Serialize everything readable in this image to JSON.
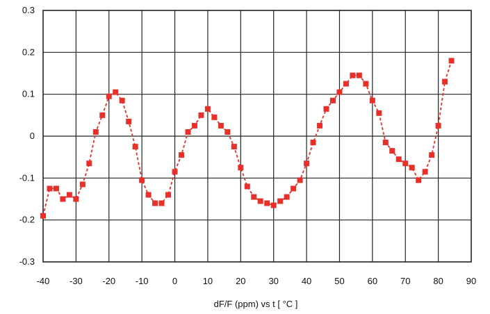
{
  "chart_data": {
    "type": "line",
    "title": "",
    "xlabel": "dF/F (ppm)  vs  t [ °C  ]",
    "ylabel": "",
    "xlim": [
      -40,
      90
    ],
    "ylim": [
      -0.3,
      0.3
    ],
    "x_ticks": [
      -40,
      -30,
      -20,
      -10,
      0,
      10,
      20,
      30,
      40,
      50,
      60,
      70,
      80,
      90
    ],
    "y_ticks": [
      -0.3,
      -0.2,
      -0.1,
      0,
      0.1,
      0.2,
      0.3
    ],
    "x_tick_labels": [
      "-40",
      "-30",
      "-20",
      "-10",
      "0",
      "10",
      "20",
      "30",
      "40",
      "50",
      "60",
      "70",
      "80",
      "90"
    ],
    "y_tick_labels": [
      "-0.3",
      "-0.2",
      "-0.1",
      "0",
      "0.1",
      "0.2",
      "0.3"
    ],
    "grid": true,
    "line_style": "dashed",
    "marker": "square",
    "colors": {
      "series": "#e8302a",
      "grid": "#222222",
      "background": "#ffffff"
    },
    "series": [
      {
        "x": [
          -40,
          -38,
          -36,
          -34,
          -32,
          -30,
          -28,
          -26,
          -24,
          -22,
          -20,
          -18,
          -16,
          -14,
          -12,
          -10,
          -8,
          -6,
          -4,
          -2,
          0,
          2,
          4,
          6,
          8,
          10,
          12,
          14,
          16,
          18,
          20,
          22,
          24,
          26,
          28,
          30,
          32,
          34,
          36,
          38,
          40,
          42,
          44,
          46,
          48,
          50,
          52,
          54,
          56,
          58,
          60,
          62,
          64,
          66,
          68,
          70,
          72,
          74,
          76,
          78,
          80,
          82,
          84
        ],
        "y": [
          -0.19,
          -0.125,
          -0.125,
          -0.15,
          -0.14,
          -0.15,
          -0.115,
          -0.065,
          0.01,
          0.05,
          0.095,
          0.105,
          0.085,
          0.035,
          -0.025,
          -0.105,
          -0.14,
          -0.16,
          -0.16,
          -0.14,
          -0.085,
          -0.045,
          0.01,
          0.025,
          0.05,
          0.065,
          0.045,
          0.025,
          0.01,
          -0.025,
          -0.075,
          -0.12,
          -0.145,
          -0.155,
          -0.16,
          -0.165,
          -0.155,
          -0.145,
          -0.125,
          -0.105,
          -0.065,
          -0.015,
          0.025,
          0.065,
          0.085,
          0.105,
          0.125,
          0.145,
          0.145,
          0.125,
          0.085,
          0.055,
          -0.015,
          -0.035,
          -0.055,
          -0.065,
          -0.075,
          -0.105,
          -0.085,
          -0.045,
          0.025,
          0.13,
          0.18
        ]
      }
    ]
  }
}
